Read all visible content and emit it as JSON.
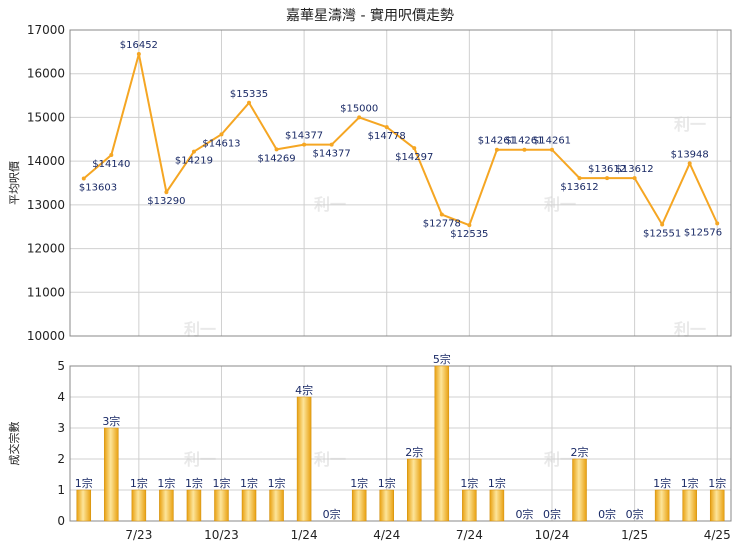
{
  "chart_data": {
    "title": "嘉華星濤灣 - 實用呎價走勢",
    "watermark": "利一",
    "colors": {
      "line": "#f5a623",
      "bar": "#f2b320",
      "bar_light": "#fde59a",
      "grid": "#d0d0d0",
      "axis": "#888888",
      "label": "#1a2a66"
    },
    "x_tick_labels": [
      {
        "i": 2,
        "label": "7/23"
      },
      {
        "i": 5,
        "label": "10/23"
      },
      {
        "i": 8,
        "label": "1/24"
      },
      {
        "i": 11,
        "label": "4/24"
      },
      {
        "i": 14,
        "label": "7/24"
      },
      {
        "i": 17,
        "label": "10/24"
      },
      {
        "i": 20,
        "label": "1/25"
      },
      {
        "i": 23,
        "label": "4/25"
      }
    ],
    "price": {
      "type": "line",
      "ylabel": "平均呎價",
      "ylim": [
        10000,
        17000
      ],
      "yticks": [
        "10000",
        "11000",
        "12000",
        "13000",
        "14000",
        "15000",
        "16000",
        "17000"
      ],
      "values": [
        13603,
        14140,
        16452,
        13290,
        14219,
        14613,
        15335,
        14269,
        14377,
        14377,
        15000,
        14778,
        14297,
        12778,
        12535,
        14261,
        14261,
        14261,
        13612,
        13612,
        13612,
        12551,
        13948,
        12576
      ],
      "labels": [
        "$13603",
        "$14140",
        "$16452",
        "$13290",
        "$14219",
        "$14613",
        "$15335",
        "$14269",
        "$14377",
        "$14377",
        "$15000",
        "$14778",
        "$14297",
        "$12778",
        "$12535",
        "$14261",
        "$14261",
        "$14261",
        "$13612",
        "$13612",
        "$13612",
        "$12551",
        "$13948",
        "$12576"
      ]
    },
    "volume": {
      "type": "bar",
      "ylabel": "成交宗數",
      "ylim": [
        0,
        5
      ],
      "yticks": [
        "0",
        "1",
        "2",
        "3",
        "4",
        "5"
      ],
      "values": [
        1,
        3,
        1,
        1,
        1,
        1,
        1,
        1,
        4,
        0,
        1,
        1,
        2,
        5,
        1,
        1,
        0,
        0,
        2,
        0,
        0,
        1,
        1,
        1
      ],
      "labels": [
        "1宗",
        "3宗",
        "1宗",
        "1宗",
        "1宗",
        "1宗",
        "1宗",
        "1宗",
        "4宗",
        "0宗",
        "1宗",
        "1宗",
        "2宗",
        "5宗",
        "1宗",
        "1宗",
        "0宗",
        "0宗",
        "2宗",
        "0宗",
        "0宗",
        "1宗",
        "1宗",
        "1宗"
      ]
    }
  }
}
